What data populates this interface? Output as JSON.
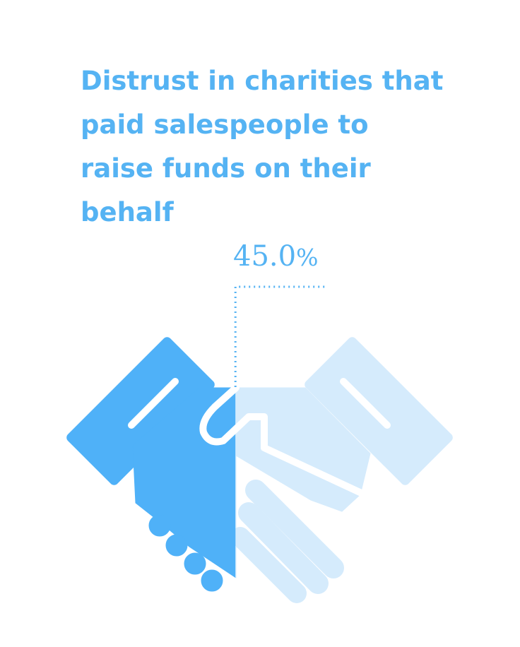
{
  "chart_data": {
    "type": "pictograph",
    "title": "Distrust in charities that paid salespeople to raise funds on their behalf",
    "value": 45.0,
    "value_label": "45.0",
    "unit": "%",
    "icon": "handshake-icon"
  },
  "colors": {
    "title": "#55b3f3",
    "fill": "#4fb1f8",
    "empty": "#d5ebfc",
    "leader": "#55b3f3"
  }
}
